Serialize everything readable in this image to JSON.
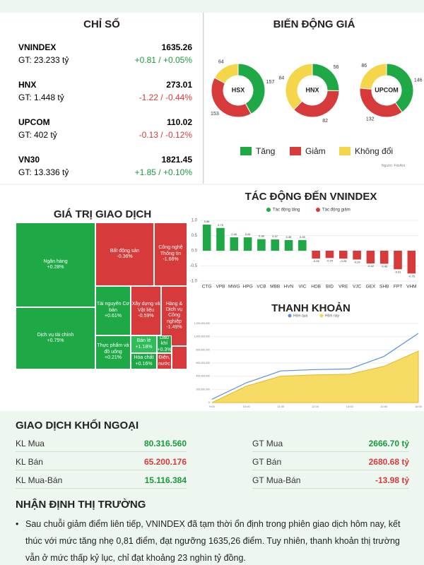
{
  "indices": {
    "title": "CHỈ SỐ",
    "items": [
      {
        "name": "VNINDEX",
        "value": "1635.26",
        "gt": "GT: 23.233 tỷ",
        "change": "+0.81 / +0.05%"
      },
      {
        "name": "HNX",
        "value": "273.01",
        "gt": "GT: 1.448 tỷ",
        "change": "-1.22 / -0.44%"
      },
      {
        "name": "UPCOM",
        "value": "110.02",
        "gt": "GT: 402 tỷ",
        "change": "-0.13 / -0.12%"
      },
      {
        "name": "VN30",
        "value": "1821.45",
        "gt": "GT: 13.336 tỷ",
        "change": "+1.85 / +0.10%"
      }
    ]
  },
  "price_movement": {
    "type": "donut",
    "title": "BIẾN ĐỘNG GIÁ",
    "source": "Nguồn: FiinAnt",
    "legend": [
      {
        "name": "Tăng",
        "color": "#1fa846"
      },
      {
        "name": "Giảm",
        "color": "#d63a3a"
      },
      {
        "name": "Không đổi",
        "color": "#f5d54a"
      }
    ],
    "exchanges": [
      {
        "name": "HSX",
        "values": [
          157,
          153,
          64
        ]
      },
      {
        "name": "HNX",
        "values": [
          56,
          82,
          84
        ]
      },
      {
        "name": "UPCOM",
        "values": [
          146,
          132,
          86
        ]
      }
    ]
  },
  "trading_value": {
    "title": "GIÁ TRỊ GIAO DỊCH",
    "cells": [
      {
        "label": "Ngân hàng",
        "change": "+0.28%",
        "color": "#1fa846"
      },
      {
        "label": "Dịch vụ tài chính",
        "change": "+0.75%",
        "color": "#1fa846"
      },
      {
        "label": "Bất động sản",
        "change": "-0.36%",
        "color": "#d63a3a"
      },
      {
        "label": "Công nghệ Thông tin",
        "change": "-1.66%",
        "color": "#d63a3a"
      },
      {
        "label": "Tài nguyên Cơ bản",
        "change": "+0.61%",
        "color": "#1fa846"
      },
      {
        "label": "Xây dựng và Vật liệu",
        "change": "-0.59%",
        "color": "#d63a3a"
      },
      {
        "label": "Hàng & Dịch vụ Công nghiệp",
        "change": "-1.49%",
        "color": "#d63a3a"
      },
      {
        "label": "Thực phẩm và đồ uống",
        "change": "+0.21%",
        "color": "#1fa846"
      },
      {
        "label": "Bán lẻ",
        "change": "+1.18%",
        "color": "#2fbd58"
      },
      {
        "label": "Dầu khí",
        "change": "+0.3%",
        "color": "#1fa846"
      },
      {
        "label": "Hóa chất",
        "change": "+0.16%",
        "color": "#1fa846"
      },
      {
        "label": "Điện, nước",
        "change": "",
        "color": "#d63a3a"
      }
    ]
  },
  "chart_data": [
    {
      "type": "bar",
      "title": "TÁC ĐỘNG ĐẾN VNINDEX",
      "series": [
        {
          "name": "Tác động tăng",
          "color": "#1fa846"
        },
        {
          "name": "Tác động giảm",
          "color": "#d63a3a"
        }
      ],
      "categories": [
        "CTG",
        "VPB",
        "MWG",
        "HPG",
        "VCB",
        "MBB",
        "HVN",
        "VIC",
        "HDB",
        "BID",
        "VRE",
        "VJC",
        "GEX",
        "SHB",
        "FPT",
        "VHM"
      ],
      "values": [
        0.86,
        0.75,
        0.44,
        0.44,
        0.38,
        0.37,
        0.35,
        0.35,
        -0.26,
        -0.24,
        -0.26,
        -0.29,
        -0.42,
        -0.43,
        -0.61,
        -0.75
      ],
      "ylim": [
        -1,
        1
      ],
      "yticks": [
        {
          "value": 1,
          "label": "1.0"
        },
        0.5,
        {
          "value": 0,
          "label": "0.0"
        },
        -0.5,
        {
          "value": -1,
          "label": "-1.0"
        }
      ],
      "grid": true
    },
    {
      "type": "area",
      "title": "THANH KHOẢN",
      "categories": [
        "9:00",
        "10:00",
        "11:00",
        "12:00",
        "13:00",
        "14:00",
        "15:00"
      ],
      "series": [
        {
          "name": "Hôm qua",
          "color": "#5b8fd6",
          "values": [
            50000000,
            300000000,
            480000000,
            500000000,
            510000000,
            700000000,
            1050000000
          ]
        },
        {
          "name": "Hôm nay",
          "color": "#f5d54a",
          "values": [
            0,
            250000000,
            400000000,
            420000000,
            430000000,
            550000000,
            780000000
          ]
        }
      ],
      "ylim": [
        0,
        1200000000
      ],
      "yticks": [
        0,
        {
          "value": 200000000,
          "label": "200,000,000"
        },
        {
          "value": 400000000,
          "label": "400,000,000"
        },
        {
          "value": 600000000,
          "label": "600,000,000"
        },
        {
          "value": 800000000,
          "label": "800,000,000"
        },
        {
          "value": 1000000000,
          "label": "1,000,000,000"
        },
        {
          "value": 1200000000,
          "label": "1,200,000,000"
        }
      ],
      "grid": true
    }
  ],
  "foreign": {
    "title": "GIAO DỊCH KHỐI NGOẠI",
    "rows": [
      [
        {
          "label": "KL Mua",
          "value": "80.316.560",
          "color": "#1a9a3e"
        },
        {
          "label": "GT Mua",
          "value": "2666.70 tỷ",
          "color": "#1a9a3e"
        }
      ],
      [
        {
          "label": "KL Bán",
          "value": "65.200.176",
          "color": "#d63a3a"
        },
        {
          "label": "GT Bán",
          "value": "2680.68 tỷ",
          "color": "#d63a3a"
        }
      ],
      [
        {
          "label": "KL Mua-Bán",
          "value": "15.116.384",
          "color": "#1a9a3e"
        },
        {
          "label": "GT Mua-Bán",
          "value": "-13.98 tỷ",
          "color": "#d63a3a"
        }
      ]
    ]
  },
  "outlook": {
    "title": "NHẬN ĐỊNH THỊ TRƯỜNG",
    "text": "Sau chuỗi giảm điểm liên tiếp, VNINDEX đã tạm thời ổn định trong phiên giao dịch hôm nay, kết thúc với mức tăng nhẹ 0,81 điểm, đạt ngưỡng 1635,26 điểm. Tuy nhiên, thanh khoản thị trường vẫn ở mức thấp kỷ lục, chỉ đạt khoảng 23 nghìn tỷ đồng."
  }
}
